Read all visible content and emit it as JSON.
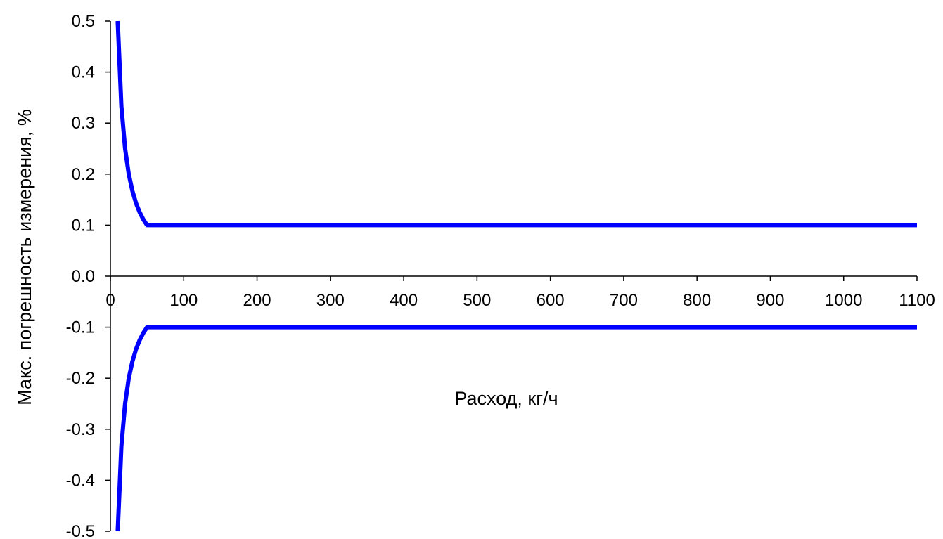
{
  "chart_data": {
    "type": "line",
    "title": "",
    "xlabel": "Расход, кг/ч",
    "ylabel": "Макс. погрешность измерения, %",
    "xlim": [
      0,
      1100
    ],
    "ylim": [
      -0.5,
      0.5
    ],
    "x_ticks": [
      0,
      100,
      200,
      300,
      400,
      500,
      600,
      700,
      800,
      900,
      1000,
      1100
    ],
    "x_tick_labels": [
      "0",
      "100",
      "200",
      "300",
      "400",
      "500",
      "600",
      "700",
      "800",
      "900",
      "1000",
      "1100"
    ],
    "y_ticks": [
      0.5,
      0.4,
      0.3,
      0.2,
      0.1,
      0.0,
      -0.1,
      -0.2,
      -0.3,
      -0.4,
      -0.5
    ],
    "y_tick_labels": [
      "0.5",
      "0.4",
      "0.3",
      "0.2",
      "0.1",
      "0.0",
      "-0.1",
      "-0.2",
      "-0.3",
      "-0.4",
      "-0.5"
    ],
    "grid": false,
    "legend": "none",
    "series": [
      {
        "color": "#0000ff",
        "x": [
          10,
          15,
          20,
          25,
          30,
          35,
          40,
          45,
          50,
          55,
          100,
          200,
          300,
          400,
          500,
          600,
          700,
          800,
          900,
          1000,
          1100
        ],
        "y": [
          0.5,
          0.333,
          0.25,
          0.2,
          0.167,
          0.143,
          0.125,
          0.111,
          0.1,
          0.1,
          0.1,
          0.1,
          0.1,
          0.1,
          0.1,
          0.1,
          0.1,
          0.1,
          0.1,
          0.1,
          0.1
        ]
      },
      {
        "color": "#0000ff",
        "x": [
          10,
          15,
          20,
          25,
          30,
          35,
          40,
          45,
          50,
          55,
          100,
          200,
          300,
          400,
          500,
          600,
          700,
          800,
          900,
          1000,
          1100
        ],
        "y": [
          -0.5,
          -0.333,
          -0.25,
          -0.2,
          -0.167,
          -0.143,
          -0.125,
          -0.111,
          -0.1,
          -0.1,
          -0.1,
          -0.1,
          -0.1,
          -0.1,
          -0.1,
          -0.1,
          -0.1,
          -0.1,
          -0.1,
          -0.1,
          -0.1
        ]
      }
    ]
  }
}
